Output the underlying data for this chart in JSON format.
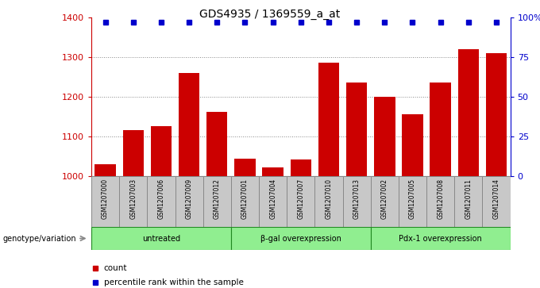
{
  "title": "GDS4935 / 1369559_a_at",
  "samples": [
    "GSM1207000",
    "GSM1207003",
    "GSM1207006",
    "GSM1207009",
    "GSM1207012",
    "GSM1207001",
    "GSM1207004",
    "GSM1207007",
    "GSM1207010",
    "GSM1207013",
    "GSM1207002",
    "GSM1207005",
    "GSM1207008",
    "GSM1207011",
    "GSM1207014"
  ],
  "counts": [
    1030,
    1117,
    1127,
    1260,
    1163,
    1045,
    1022,
    1043,
    1285,
    1235,
    1200,
    1157,
    1235,
    1320,
    1310
  ],
  "percentile_vals": [
    97,
    97,
    97,
    97,
    97,
    97,
    97,
    97,
    97,
    97,
    97,
    97,
    97,
    97,
    97
  ],
  "groups": [
    {
      "label": "untreated",
      "start": 0,
      "end": 4
    },
    {
      "label": "β-gal overexpression",
      "start": 5,
      "end": 9
    },
    {
      "label": "Pdx-1 overexpression",
      "start": 10,
      "end": 14
    }
  ],
  "ylim_left": [
    1000,
    1400
  ],
  "ylim_right": [
    0,
    100
  ],
  "yticks_left": [
    1000,
    1100,
    1200,
    1300,
    1400
  ],
  "yticks_right": [
    0,
    25,
    50,
    75,
    100
  ],
  "bar_color": "#cc0000",
  "dot_color": "#0000cc",
  "sample_bg_color": "#c8c8c8",
  "sample_border_color": "#888888",
  "group_bg_color": "#90ee90",
  "group_border_color": "#228822",
  "left_axis_color": "#cc0000",
  "right_axis_color": "#0000cc",
  "grid_color": "#888888",
  "legend_count_label": "count",
  "legend_pct_label": "percentile rank within the sample",
  "genotype_label": "genotype/variation"
}
